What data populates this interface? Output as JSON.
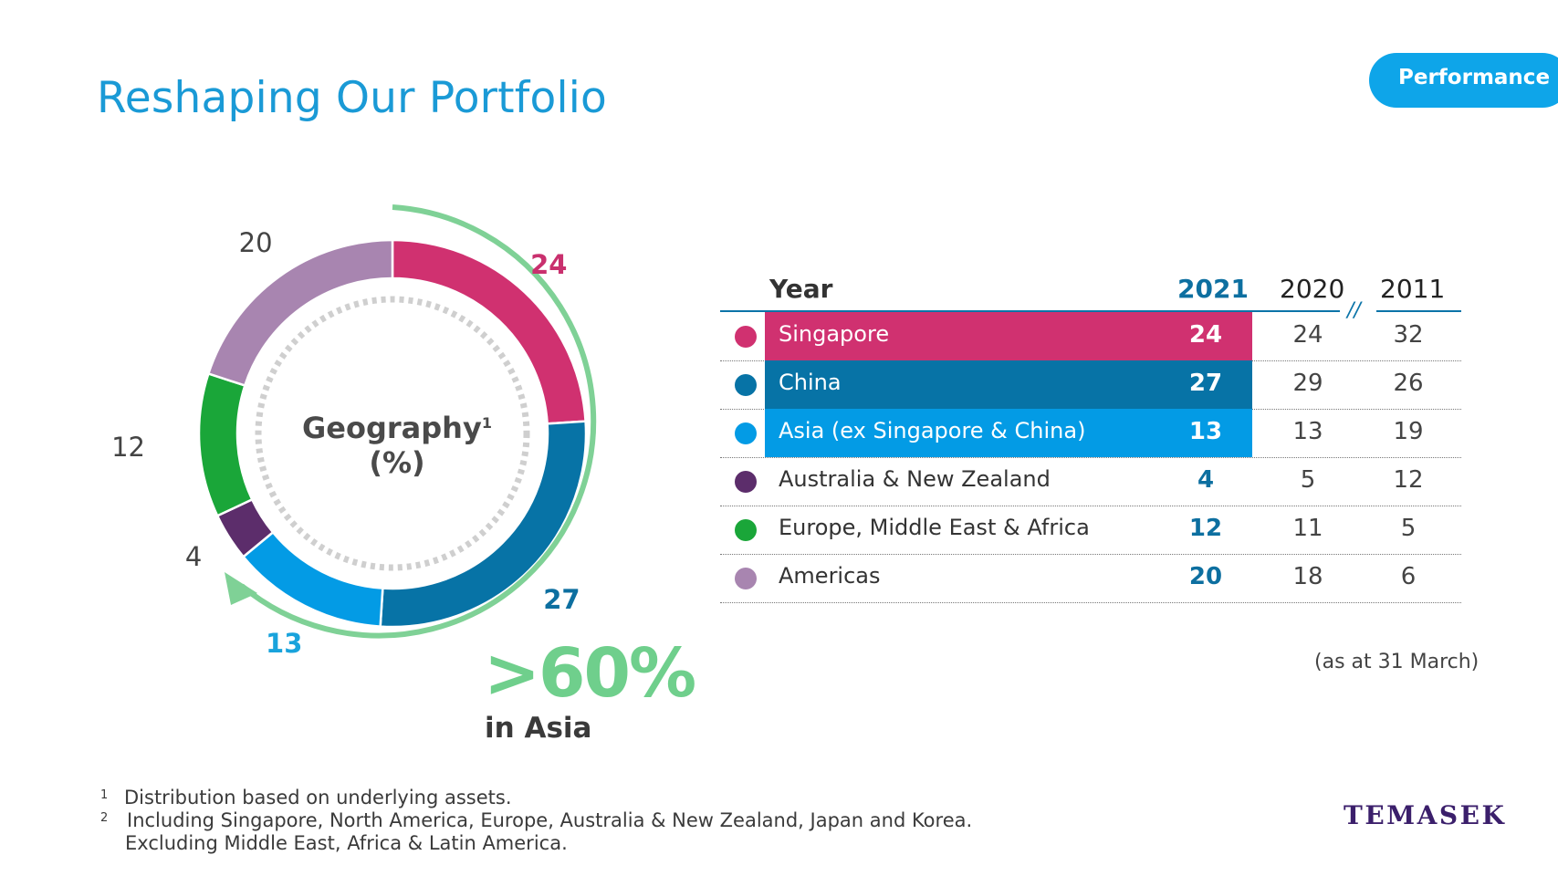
{
  "title": "Reshaping Our Portfolio",
  "badge": "Performance",
  "chart_data": [
    {
      "type": "pie",
      "title": "Geography",
      "title_footnote": "1",
      "title_unit": "(%)",
      "categories": [
        "Singapore",
        "China",
        "Asia (ex Singapore & China)",
        "Australia & New Zealand",
        "Europe, Middle East & Africa",
        "Americas"
      ],
      "values": [
        24,
        27,
        13,
        4,
        12,
        20
      ],
      "colors": [
        "#d03170",
        "#0773a6",
        "#039be5",
        "#5c2d6b",
        "#1aa639",
        "#a885b0"
      ],
      "label_colors": [
        "#c9306e",
        "#0d6fa0",
        "#19a3dc",
        "#444444",
        "#444444",
        "#444444"
      ],
      "label_bold": [
        true,
        true,
        true,
        false,
        false,
        false
      ],
      "highlight": {
        "text": ">60%",
        "subtext": "in Asia",
        "color": "#6fcf8c"
      }
    },
    {
      "type": "table",
      "columns": [
        "Year",
        "2021",
        "2020",
        "2011"
      ],
      "break_mark": "//",
      "rows": [
        {
          "label": "Singapore",
          "v2021": "24",
          "v2020": "24",
          "v2011": "32",
          "color": "#d03170",
          "highlight": true
        },
        {
          "label": "China",
          "v2021": "27",
          "v2020": "29",
          "v2011": "26",
          "color": "#0773a6",
          "highlight": true
        },
        {
          "label": "Asia (ex Singapore & China)",
          "v2021": "13",
          "v2020": "13",
          "v2011": "19",
          "color": "#039be5",
          "highlight": true
        },
        {
          "label": "Australia & New Zealand",
          "v2021": "4",
          "v2020": "5",
          "v2011": "12",
          "color": "#5c2d6b",
          "highlight": false
        },
        {
          "label": "Europe, Middle East & Africa",
          "v2021": "12",
          "v2020": "11",
          "v2011": "5",
          "color": "#1aa639",
          "highlight": false
        },
        {
          "label": "Americas",
          "v2021": "20",
          "v2020": "18",
          "v2011": "6",
          "color": "#a885b0",
          "highlight": false
        }
      ]
    }
  ],
  "note": "(as at 31 March)",
  "footnotes": [
    {
      "num": "1",
      "lines": [
        "Distribution based on underlying assets."
      ]
    },
    {
      "num": "2",
      "lines": [
        "Including Singapore, North America, Europe, Australia & New Zealand, Japan and Korea.",
        "Excluding Middle East, Africa & Latin America."
      ]
    }
  ],
  "logo": "TEMASEK"
}
